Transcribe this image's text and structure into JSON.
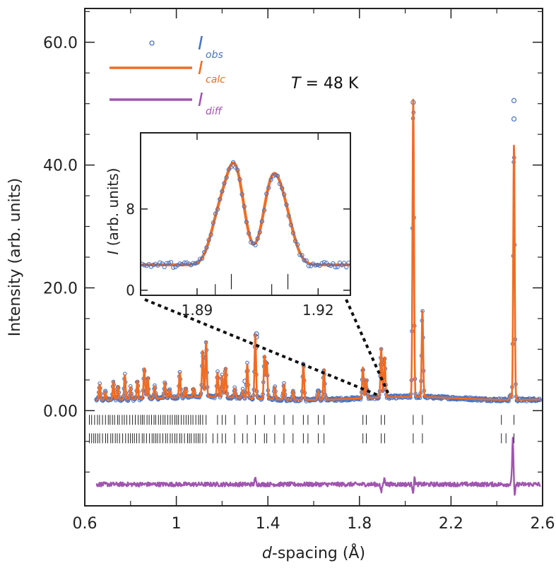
{
  "chart_data": {
    "type": "scatter",
    "xlabel_italic": "d",
    "xlabel_rest": "-spacing (Å)",
    "ylabel": "Intensity (arb. units)",
    "xlim": [
      0.6,
      2.6
    ],
    "ylim": [
      -15.5,
      65.5
    ],
    "x_ticks": [
      "0.6",
      "1",
      "1.4",
      "1.8",
      "2.2",
      "2.6"
    ],
    "x_tick_values": [
      0.6,
      1.0,
      1.4,
      1.8,
      2.2,
      2.6
    ],
    "y_ticks": [
      "0.00",
      "20.0",
      "40.0",
      "60.0"
    ],
    "y_tick_values": [
      0,
      20,
      40,
      60
    ],
    "annotation": {
      "italic": "T",
      "rest": " = 48 K"
    },
    "legend": {
      "placement": "top-left",
      "entries": [
        {
          "main": "I",
          "sub": "obs",
          "marker": "circle",
          "color": "#4a73c2"
        },
        {
          "main": "I",
          "sub": "calc",
          "marker": "line",
          "color": "#f06c24"
        },
        {
          "main": "I",
          "sub": "diff",
          "marker": "line",
          "color": "#a055b0"
        }
      ]
    },
    "colors": {
      "obs": "#4a73c2",
      "calc": "#f06c24",
      "diff": "#a055b0",
      "ticks": "#222222"
    },
    "background": 2.0,
    "diff_offset": -12.0,
    "x_start": 0.65,
    "x_end": 2.59,
    "peaks": [
      [
        0.665,
        2.5
      ],
      [
        0.69,
        1.3
      ],
      [
        0.725,
        3.0
      ],
      [
        0.745,
        2.2
      ],
      [
        0.775,
        4.0
      ],
      [
        0.8,
        2.0
      ],
      [
        0.83,
        3.0
      ],
      [
        0.86,
        5.0
      ],
      [
        0.875,
        3.5
      ],
      [
        0.905,
        2.0
      ],
      [
        0.95,
        2.5
      ],
      [
        0.97,
        1.2
      ],
      [
        1.015,
        4.0
      ],
      [
        1.04,
        1.5
      ],
      [
        1.075,
        1.5
      ],
      [
        1.115,
        7.5
      ],
      [
        1.13,
        9.0
      ],
      [
        1.18,
        4.0
      ],
      [
        1.2,
        3.5
      ],
      [
        1.215,
        4.8
      ],
      [
        1.255,
        1.5
      ],
      [
        1.29,
        1.2
      ],
      [
        1.31,
        5.5
      ],
      [
        1.345,
        10.5
      ],
      [
        1.385,
        7.0
      ],
      [
        1.395,
        6.0
      ],
      [
        1.43,
        2.0
      ],
      [
        1.47,
        2.5
      ],
      [
        1.51,
        1.5
      ],
      [
        1.555,
        6.0
      ],
      [
        1.62,
        1.5
      ],
      [
        1.645,
        5.0
      ],
      [
        1.815,
        5.0
      ],
      [
        1.83,
        3.0
      ],
      [
        1.895,
        8.0
      ],
      [
        1.91,
        6.5
      ],
      [
        2.035,
        48.5
      ],
      [
        2.075,
        14.0
      ],
      [
        2.46,
        0.8
      ],
      [
        2.475,
        41.5
      ]
    ],
    "obs_outliers": [
      [
        1.895,
        7.5
      ],
      [
        1.3,
        4.8
      ],
      [
        1.62,
        3.2
      ],
      [
        1.35,
        12.5
      ],
      [
        1.35,
        12.0
      ],
      [
        2.035,
        50.2
      ],
      [
        2.475,
        50.5
      ],
      [
        2.475,
        47.5
      ]
    ],
    "tick_rows": [
      {
        "y": -1.5,
        "d": [
          1.115,
          1.13,
          1.18,
          1.2,
          1.215,
          1.255,
          1.31,
          1.345,
          1.385,
          1.43,
          1.47,
          1.51,
          1.555,
          1.575,
          1.62,
          1.645,
          1.815,
          1.83,
          1.895,
          1.91,
          2.035,
          2.075,
          2.42,
          2.475
        ]
      },
      {
        "y": -4.5,
        "d": [
          1.115,
          1.13,
          1.16,
          1.18,
          1.2,
          1.215,
          1.255,
          1.29,
          1.31,
          1.345,
          1.385,
          1.395,
          1.43,
          1.47,
          1.51,
          1.555,
          1.575,
          1.62,
          1.645,
          1.815,
          1.83,
          1.895,
          1.91,
          2.035,
          2.075,
          2.42,
          2.44,
          2.475
        ]
      }
    ],
    "diff_spikes": [
      [
        1.345,
        0.9
      ],
      [
        1.895,
        -1.3
      ],
      [
        1.91,
        1.0
      ],
      [
        2.035,
        -1.4
      ],
      [
        2.04,
        1.2
      ],
      [
        2.47,
        7.5
      ],
      [
        2.478,
        -2.0
      ]
    ],
    "inset": {
      "xlim": [
        1.876,
        1.928
      ],
      "ylim": [
        -0.5,
        15.5
      ],
      "ylabel_italic": "I",
      "ylabel_rest": " (arb. units)",
      "x_ticks": [
        "1.89",
        "1.92"
      ],
      "x_tick_values": [
        1.89,
        1.92
      ],
      "y_ticks": [
        "0",
        "8"
      ],
      "y_tick_values": [
        0,
        8
      ],
      "background": 2.5,
      "peaks": [
        [
          1.8955,
          4.5,
          0.0022
        ],
        [
          1.8995,
          9.0,
          0.0022
        ],
        [
          1.9085,
          7.6,
          0.0022
        ],
        [
          1.912,
          4.0,
          0.0022
        ]
      ],
      "tick_marks": [
        1.8945,
        1.8985,
        1.9085,
        1.9125
      ]
    }
  }
}
